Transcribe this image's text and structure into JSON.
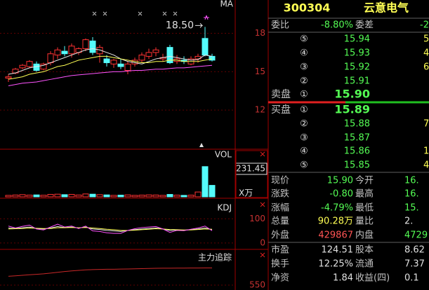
{
  "chart_data": [
    {
      "type": "candlestick",
      "title": "MA",
      "ylim": [
        9,
        20.6
      ],
      "yticks": [
        18,
        15,
        12
      ],
      "max_label": {
        "value": 18.5,
        "label": "18.50"
      },
      "candles": [
        {
          "o": 14.5,
          "h": 14.8,
          "l": 14.2,
          "c": 14.6
        },
        {
          "o": 14.9,
          "h": 15.3,
          "l": 14.8,
          "c": 15.2
        },
        {
          "o": 15.3,
          "h": 15.6,
          "l": 15.2,
          "c": 15.5
        },
        {
          "o": 15.4,
          "h": 15.9,
          "l": 15.3,
          "c": 15.8
        },
        {
          "o": 15.6,
          "h": 15.8,
          "l": 15.0,
          "c": 15.1
        },
        {
          "o": 15.2,
          "h": 15.7,
          "l": 15.1,
          "c": 15.6
        },
        {
          "o": 15.7,
          "h": 16.6,
          "l": 15.5,
          "c": 16.4
        },
        {
          "o": 16.3,
          "h": 16.9,
          "l": 16.0,
          "c": 16.7
        },
        {
          "o": 16.6,
          "h": 17.0,
          "l": 16.2,
          "c": 16.4
        },
        {
          "o": 16.4,
          "h": 17.2,
          "l": 16.1,
          "c": 17.0
        },
        {
          "o": 16.5,
          "h": 16.9,
          "l": 16.3,
          "c": 16.8
        },
        {
          "o": 16.8,
          "h": 17.6,
          "l": 16.6,
          "c": 17.5
        },
        {
          "o": 17.4,
          "h": 17.7,
          "l": 16.3,
          "c": 16.5
        },
        {
          "o": 16.4,
          "h": 17.1,
          "l": 15.7,
          "c": 16.9
        },
        {
          "o": 16.0,
          "h": 16.3,
          "l": 15.4,
          "c": 15.7
        },
        {
          "o": 15.6,
          "h": 16.0,
          "l": 15.3,
          "c": 15.9
        },
        {
          "o": 15.6,
          "h": 16.0,
          "l": 15.2,
          "c": 15.4
        },
        {
          "o": 15.1,
          "h": 15.8,
          "l": 14.8,
          "c": 15.6
        },
        {
          "o": 15.6,
          "h": 16.1,
          "l": 15.4,
          "c": 15.9
        },
        {
          "o": 15.9,
          "h": 16.5,
          "l": 15.7,
          "c": 16.3
        },
        {
          "o": 16.2,
          "h": 16.8,
          "l": 16.0,
          "c": 16.5
        },
        {
          "o": 16.5,
          "h": 16.9,
          "l": 16.2,
          "c": 16.7
        },
        {
          "o": 16.0,
          "h": 16.4,
          "l": 15.8,
          "c": 16.1
        },
        {
          "o": 16.9,
          "h": 17.1,
          "l": 15.6,
          "c": 15.7
        },
        {
          "o": 15.8,
          "h": 16.3,
          "l": 15.6,
          "c": 16.0
        },
        {
          "o": 15.9,
          "h": 16.2,
          "l": 15.6,
          "c": 15.8
        },
        {
          "o": 15.6,
          "h": 16.2,
          "l": 15.5,
          "c": 16.0
        },
        {
          "o": 16.0,
          "h": 16.4,
          "l": 15.7,
          "c": 16.2
        },
        {
          "o": 17.6,
          "h": 18.5,
          "l": 16.2,
          "c": 16.3
        },
        {
          "o": 16.2,
          "h": 16.4,
          "l": 15.8,
          "c": 15.9
        }
      ],
      "series": [
        {
          "color": "#e8e8e8",
          "values": [
            14.8,
            14.9,
            15.1,
            15.3,
            15.4,
            15.5,
            15.7,
            15.9,
            16.1,
            16.3,
            16.5,
            16.7,
            16.8,
            16.7,
            16.5,
            16.3,
            16.0,
            15.8,
            15.7,
            15.6,
            15.8,
            16.0,
            16.1,
            16.2,
            16.1,
            16.0,
            15.9,
            15.95,
            16.3,
            16.2
          ]
        },
        {
          "color": "#ffff54",
          "values": [
            14.4,
            14.5,
            14.6,
            14.8,
            14.9,
            15.0,
            15.2,
            15.4,
            15.5,
            15.7,
            15.9,
            16.0,
            16.1,
            16.2,
            16.2,
            16.1,
            16.0,
            15.9,
            15.8,
            15.7,
            15.7,
            15.8,
            15.8,
            15.9,
            15.9,
            15.8,
            15.8,
            15.8,
            15.9,
            16.0
          ]
        },
        {
          "color": "#ff54ff",
          "values": [
            13.9,
            14.0,
            14.1,
            14.15,
            14.2,
            14.3,
            14.4,
            14.5,
            14.6,
            14.7,
            14.75,
            14.8,
            14.85,
            14.9,
            14.95,
            15.0,
            15.0,
            15.05,
            15.1,
            15.1,
            15.15,
            15.2,
            15.2,
            15.25,
            15.3,
            15.3,
            15.35,
            15.4,
            15.45,
            15.5
          ]
        }
      ]
    },
    {
      "type": "bar",
      "title": "VOL",
      "unit": "X万",
      "ylim": [
        0,
        388
      ],
      "yticks": [
        231.45
      ],
      "values": [
        12,
        15,
        18,
        14,
        16,
        13,
        20,
        22,
        18,
        20,
        15,
        24,
        22,
        18,
        16,
        12,
        14,
        16,
        12,
        14,
        16,
        15,
        12,
        20,
        14,
        12,
        14,
        40,
        250,
        95
      ]
    },
    {
      "type": "line",
      "title": "KDJ",
      "ylim": [
        -23.5,
        179.4
      ],
      "yticks": [
        100,
        0
      ],
      "series": [
        {
          "color": "#e8e8e8",
          "values": [
            62,
            60,
            63,
            66,
            60,
            58,
            62,
            68,
            64,
            66,
            62,
            66,
            58,
            56,
            52,
            50,
            48,
            52,
            55,
            58,
            60,
            62,
            58,
            52,
            54,
            53,
            55,
            58,
            62,
            55
          ]
        },
        {
          "color": "#ffff54",
          "values": [
            58,
            59,
            60,
            62,
            61,
            60,
            60,
            63,
            63,
            64,
            63,
            64,
            62,
            60,
            57,
            55,
            52,
            52,
            53,
            55,
            57,
            59,
            58,
            56,
            55,
            54,
            54,
            56,
            58,
            57
          ]
        },
        {
          "color": "#ff54ff",
          "values": [
            70,
            62,
            69,
            74,
            58,
            54,
            66,
            78,
            66,
            70,
            60,
            70,
            50,
            48,
            42,
            40,
            40,
            52,
            59,
            64,
            66,
            68,
            58,
            44,
            52,
            51,
            57,
            62,
            70,
            51
          ]
        }
      ]
    },
    {
      "type": "line",
      "title": "主力追踪",
      "ylim": [
        500,
        900
      ],
      "yticks": [
        550
      ],
      "series": [
        {
          "color": "#c82828",
          "values": [
            640,
            645,
            650,
            655,
            660,
            665,
            672,
            680,
            688,
            695,
            700,
            705,
            708,
            710,
            712,
            712,
            713,
            714,
            716,
            718,
            720,
            721,
            722,
            722,
            723,
            723,
            724,
            724,
            725,
            725
          ]
        }
      ]
    }
  ],
  "quote": {
    "code": "300304",
    "name": "云意电气",
    "commission": {
      "ratio_label": "委比",
      "ratio": "-8.80%",
      "diff_label": "委差",
      "diff": "-2"
    },
    "asks": [
      {
        "level": "⑤",
        "price": "15.94",
        "volume": "5"
      },
      {
        "level": "④",
        "price": "15.93",
        "volume": "4"
      },
      {
        "level": "③",
        "price": "15.92",
        "volume": "6"
      },
      {
        "level": "②",
        "price": "15.91"
      },
      {
        "label": "卖盘",
        "level": "①",
        "price": "15.90"
      }
    ],
    "bids": [
      {
        "label": "买盘",
        "level": "①",
        "price": "15.89"
      },
      {
        "level": "②",
        "price": "15.88",
        "volume": "7"
      },
      {
        "level": "③",
        "price": "15.87"
      },
      {
        "level": "④",
        "price": "15.86",
        "volume": "1"
      },
      {
        "level": "⑤",
        "price": "15.85",
        "volume": "4"
      }
    ],
    "stats": [
      [
        "现价",
        "15.90",
        "今开",
        "16."
      ],
      [
        "涨跌",
        "-0.80",
        "最高",
        "16."
      ],
      [
        "涨幅",
        "-4.79%",
        "最低",
        "15."
      ],
      [
        "总量",
        "90.28万",
        "量比",
        "2."
      ],
      [
        "外盘",
        "429867",
        "内盘",
        "4729"
      ]
    ],
    "fundamentals": [
      [
        "市盈",
        "124.51",
        "股本",
        "8.62"
      ],
      [
        "换手",
        "12.25%",
        "流通",
        "7.37"
      ],
      [
        "净资",
        "1.84",
        "收益(四)",
        "0.1"
      ]
    ]
  }
}
